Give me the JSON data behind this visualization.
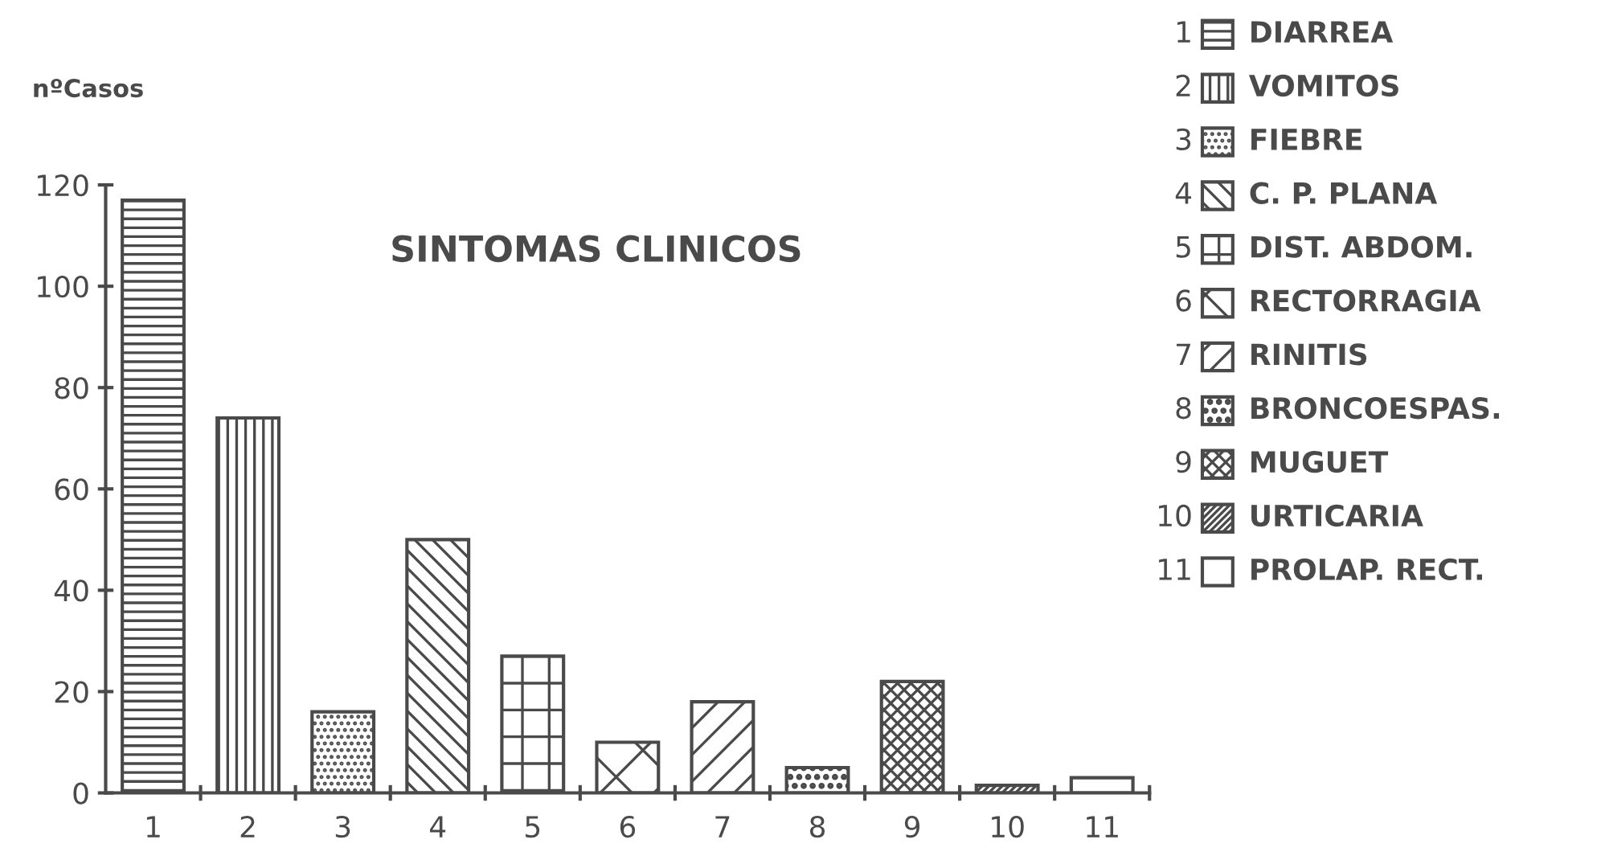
{
  "chart_data": {
    "type": "bar",
    "title": "SINTOMAS CLINICOS",
    "ylabel": "nºCasos",
    "categories": [
      "1",
      "2",
      "3",
      "4",
      "5",
      "6",
      "7",
      "8",
      "9",
      "10",
      "11"
    ],
    "series": [
      {
        "name": "DIARREA",
        "color": "#4a4a4a",
        "values": [
          117,
          null,
          null,
          null,
          null,
          null,
          null,
          null,
          null,
          null,
          null
        ]
      },
      {
        "name": "VOMITOS",
        "color": "#4a4a4a",
        "values": [
          null,
          74,
          null,
          null,
          null,
          null,
          null,
          null,
          null,
          null,
          null
        ]
      },
      {
        "name": "FIEBRE",
        "color": "#4a4a4a",
        "values": [
          null,
          null,
          16,
          null,
          null,
          null,
          null,
          null,
          null,
          null,
          null
        ]
      },
      {
        "name": "C. P. PLANA",
        "color": "#4a4a4a",
        "values": [
          null,
          null,
          null,
          50,
          null,
          null,
          null,
          null,
          null,
          null,
          null
        ]
      },
      {
        "name": "DIST. ABDOM.",
        "color": "#4a4a4a",
        "values": [
          null,
          null,
          null,
          null,
          27,
          null,
          null,
          null,
          null,
          null,
          null
        ]
      },
      {
        "name": "RECTORRAGIA",
        "color": "#4a4a4a",
        "values": [
          null,
          null,
          null,
          null,
          null,
          10,
          null,
          null,
          null,
          null,
          null
        ]
      },
      {
        "name": "RINITIS",
        "color": "#4a4a4a",
        "values": [
          null,
          null,
          null,
          null,
          null,
          null,
          18,
          null,
          null,
          null,
          null
        ]
      },
      {
        "name": "BRONCOESPAS.",
        "color": "#4a4a4a",
        "values": [
          null,
          null,
          null,
          null,
          null,
          null,
          null,
          5,
          null,
          null,
          null
        ]
      },
      {
        "name": "MUGUET",
        "color": "#4a4a4a",
        "values": [
          null,
          null,
          null,
          null,
          null,
          null,
          null,
          null,
          22,
          null,
          null
        ]
      },
      {
        "name": "URTICARIA",
        "color": "#4a4a4a",
        "values": [
          null,
          null,
          null,
          null,
          null,
          null,
          null,
          null,
          null,
          1.5,
          null
        ]
      },
      {
        "name": "PROLAP. RECT.",
        "color": "#4a4a4a",
        "values": [
          null,
          null,
          null,
          null,
          null,
          null,
          null,
          null,
          null,
          null,
          3
        ]
      }
    ],
    "ylim": [
      0,
      120
    ],
    "yticks": [
      0,
      20,
      40,
      60,
      80,
      100,
      120
    ],
    "grid": false,
    "legend": "right"
  }
}
